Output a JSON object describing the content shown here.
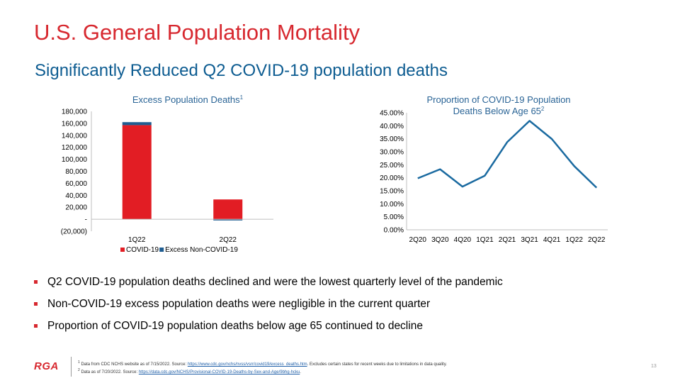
{
  "slide": {
    "title": "U.S. General Population Mortality",
    "subtitle": "Significantly Reduced Q2 COVID-19 population deaths",
    "page_number": "13",
    "logo_text": "RGA"
  },
  "bullets": [
    "Q2 COVID-19 population deaths declined and were the lowest quarterly level of the pandemic",
    "Non-COVID-19 excess population deaths were negligible in the current quarter",
    "Proportion of COVID-19 population deaths below age 65 continued to decline"
  ],
  "footnotes": [
    {
      "marker": "1",
      "text_before": "Data from CDC NCHS website as of 7/15/2022.  Source: ",
      "link": "https://www.cdc.gov/nchs/nvss/vsrr/covid19/excess_deaths.htm",
      "text_after": ".  Excludes certain states for recent weeks due to limitations in data quality."
    },
    {
      "marker": "2",
      "text_before": "Data as of 7/20/2022.  Source: ",
      "link": "https://data.cdc.gov/NCHS/Provisional-COVID-19-Deaths-by-Sex-and-Age/9bhg-hcku",
      "text_after": "."
    }
  ],
  "colors": {
    "red": "#d7282f",
    "blue": "#0d5c91",
    "line": "#1a6aa0"
  },
  "chart_data": [
    {
      "type": "bar",
      "stacked": true,
      "title": "Excess Population Deaths",
      "title_superscript": "1",
      "categories": [
        "1Q22",
        "2Q22"
      ],
      "series": [
        {
          "name": "COVID-19",
          "color": "#e21d24",
          "values": [
            157000,
            33000
          ]
        },
        {
          "name": "Excess Non-COVID-19",
          "color": "#1f5d91",
          "values": [
            5000,
            -2000
          ]
        }
      ],
      "ylim": [
        -20000,
        180000
      ],
      "ytick_values": [
        -20000,
        0,
        20000,
        40000,
        60000,
        80000,
        100000,
        120000,
        140000,
        160000,
        180000
      ],
      "ytick_labels": [
        "(20,000)",
        "-",
        "20,000",
        "40,000",
        "60,000",
        "80,000",
        "100,000",
        "120,000",
        "140,000",
        "160,000",
        "180,000"
      ],
      "legend_position": "bottom"
    },
    {
      "type": "line",
      "title_line1": "Proportion of COVID-19 Population",
      "title_line2": "Deaths Below Age 65",
      "title_superscript": "2",
      "categories": [
        "2Q20",
        "3Q20",
        "4Q20",
        "1Q21",
        "2Q21",
        "3Q21",
        "4Q21",
        "1Q22",
        "2Q22"
      ],
      "series": [
        {
          "color": "#1a6aa0",
          "values": [
            0.198,
            0.233,
            0.166,
            0.208,
            0.337,
            0.419,
            0.349,
            0.245,
            0.162
          ]
        }
      ],
      "ylim": [
        0,
        0.45
      ],
      "ytick_values": [
        0,
        0.05,
        0.1,
        0.15,
        0.2,
        0.25,
        0.3,
        0.35,
        0.4,
        0.45
      ],
      "ytick_labels": [
        "0.00%",
        "5.00%",
        "10.00%",
        "15.00%",
        "20.00%",
        "25.00%",
        "30.00%",
        "35.00%",
        "40.00%",
        "45.00%"
      ],
      "grid": false
    }
  ]
}
